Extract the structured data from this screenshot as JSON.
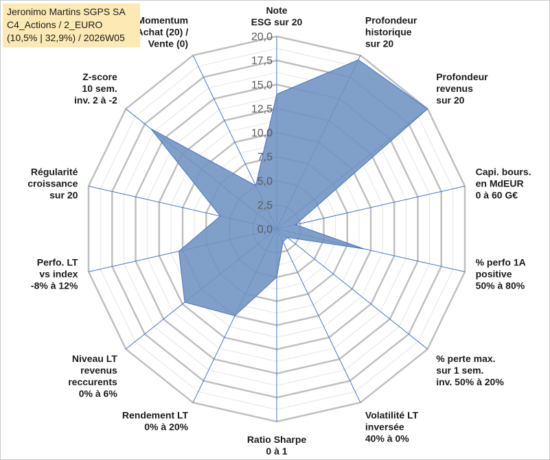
{
  "title": {
    "line1": "Jeronimo Martins SGPS SA",
    "line2": "C4_Actions / 2_EURO",
    "line3": "(10,5% | 32,9%) / 2026W05"
  },
  "colors": {
    "fill": "#7295c3",
    "stroke": "#4472c4",
    "spoke": "#4472c4",
    "grid_major": "#bfbfbf",
    "grid_minor": "#e4e4e4",
    "title_bg": "#fde9b4"
  },
  "chart_data": {
    "type": "radar",
    "rmin": 0,
    "rmax": 20,
    "major_step": 2.5,
    "minor_step": 1.25,
    "tick_labels": [
      "0,0",
      "2,5",
      "5,0",
      "7,5",
      "10,0",
      "12,5",
      "15,0",
      "17,5",
      "20,0"
    ],
    "axes": [
      {
        "label": [
          "Note",
          "ESG sur 20"
        ],
        "value": 14.0
      },
      {
        "label": [
          "Profondeur",
          "historique",
          "sur 20"
        ],
        "value": 19.5
      },
      {
        "label": [
          "Profondeur",
          "revenus",
          "sur 20"
        ],
        "value": 20.0
      },
      {
        "label": [
          "Capi. bours.",
          "en MdEUR",
          "0 à 60 G€"
        ],
        "value": 2.0
      },
      {
        "label": [
          "% perfo 1A",
          "positive",
          "50% à 80%"
        ],
        "value": 9.3
      },
      {
        "label": [
          "% perte max.",
          "sur 1 sem.",
          "inv. 50% à 20%"
        ],
        "value": 1.4
      },
      {
        "label": [
          "Volatilité LT",
          "inversée",
          "40% à 0%"
        ],
        "value": 1.5
      },
      {
        "label": [
          "Ratio Sharpe",
          "0 à 1"
        ],
        "value": 5.0
      },
      {
        "label": [
          "Rendement LT",
          "0% à 20%"
        ],
        "value": 10.0
      },
      {
        "label": [
          "Niveau LT",
          "revenus",
          "reccurents",
          "0% à 6%"
        ],
        "value": 12.2
      },
      {
        "label": [
          "Perfo. LT",
          "vs index",
          "-8% à 12%"
        ],
        "value": 10.4
      },
      {
        "label": [
          "Régularité",
          "croissance",
          "sur 20"
        ],
        "value": 6.0
      },
      {
        "label": [
          "Z-score",
          "10 sem.",
          "inv. 2 à -2"
        ],
        "value": 16.7
      },
      {
        "label": [
          "Momentum",
          "Achat (20) /",
          "Vente (0)"
        ],
        "value": 5.0
      }
    ]
  }
}
